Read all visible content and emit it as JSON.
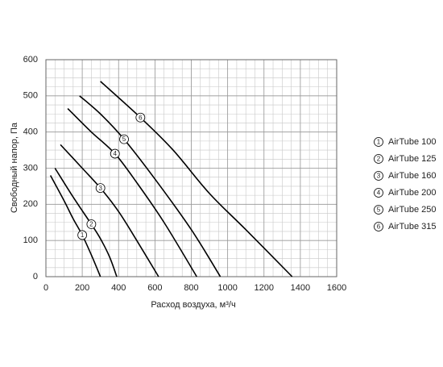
{
  "chart_data": {
    "type": "line",
    "xlabel": "Расход воздуха, м³/ч",
    "ylabel": "Свободный напор, Па",
    "xlim": [
      0,
      1600
    ],
    "xticks": [
      0,
      200,
      400,
      600,
      800,
      1000,
      1200,
      1400,
      1600
    ],
    "ylim": [
      0,
      600
    ],
    "yticks": [
      0,
      100,
      200,
      300,
      400,
      500,
      600
    ],
    "x_minor_step": 50,
    "y_minor_step": 25,
    "grid": true,
    "legend": "right",
    "series": [
      {
        "name": "AirTube 100",
        "marker": "1",
        "color": "#000000",
        "x": [
          25,
          100,
          150,
          200,
          250,
          300
        ],
        "values": [
          280,
          210,
          160,
          115,
          60,
          0
        ]
      },
      {
        "name": "AirTube 125",
        "marker": "2",
        "color": "#000000",
        "x": [
          50,
          150,
          250,
          300,
          350,
          390
        ],
        "values": [
          300,
          220,
          145,
          105,
          55,
          0
        ]
      },
      {
        "name": "AirTube 160",
        "marker": "3",
        "color": "#000000",
        "x": [
          80,
          200,
          300,
          400,
          500,
          620
        ],
        "values": [
          365,
          300,
          245,
          180,
          100,
          0
        ]
      },
      {
        "name": "AirTube 200",
        "marker": "4",
        "color": "#000000",
        "x": [
          120,
          250,
          380,
          500,
          650,
          830
        ],
        "values": [
          465,
          400,
          340,
          260,
          150,
          0
        ]
      },
      {
        "name": "AirTube 250",
        "marker": "5",
        "color": "#000000",
        "x": [
          185,
          300,
          430,
          600,
          800,
          960
        ],
        "values": [
          500,
          450,
          380,
          270,
          130,
          0
        ]
      },
      {
        "name": "AirTube 315",
        "marker": "6",
        "color": "#000000",
        "x": [
          300,
          520,
          700,
          900,
          1100,
          1355
        ],
        "values": [
          540,
          440,
          350,
          230,
          130,
          0
        ]
      }
    ]
  }
}
